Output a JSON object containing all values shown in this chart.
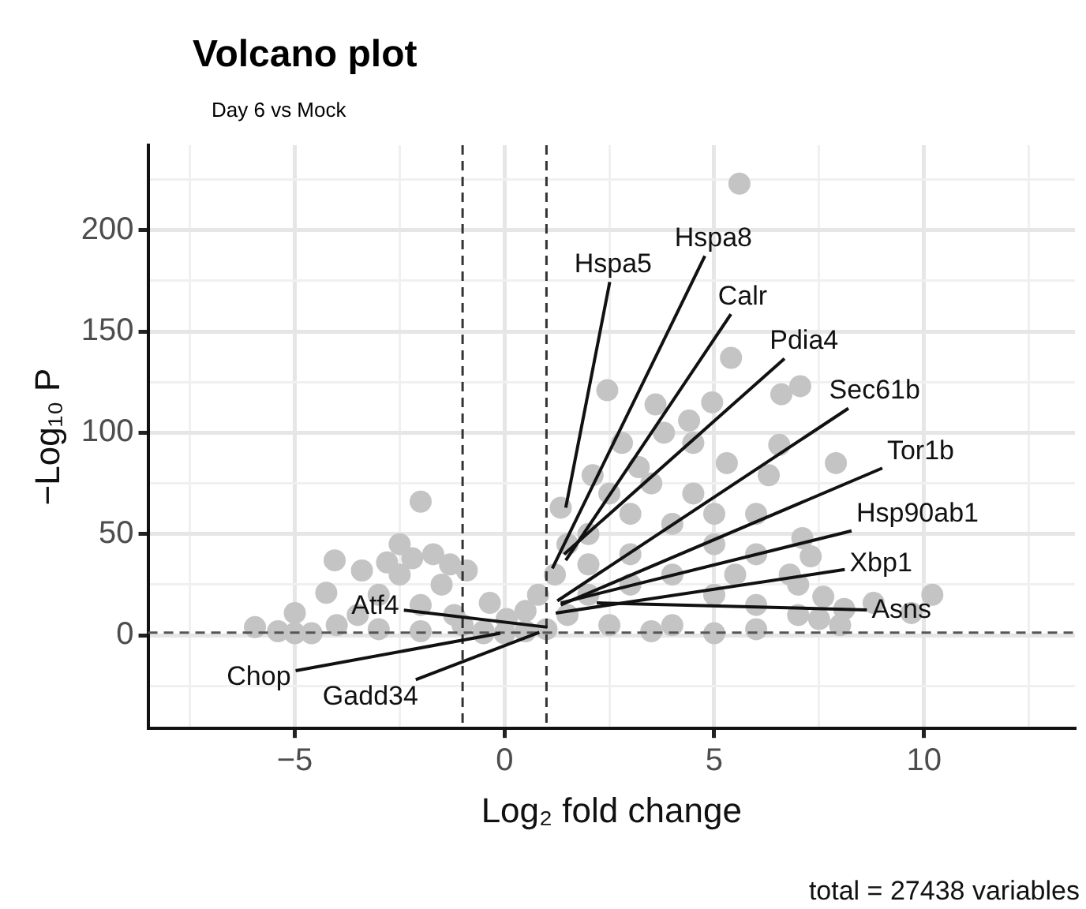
{
  "chart_data": {
    "type": "scatter",
    "title": "Volcano plot",
    "subtitle": "Day 6 vs Mock",
    "xlabel": "Log₂ fold change",
    "ylabel": "−Log₁₀ P",
    "xlim": [
      -8.5,
      13.6
    ],
    "ylim": [
      -46,
      242
    ],
    "xticks": [
      {
        "value": -7.5,
        "label": null
      },
      -5,
      {
        "value": -2.5,
        "label": null
      },
      0,
      {
        "value": 2.5,
        "label": null
      },
      5,
      {
        "value": 7.5,
        "label": null
      },
      10,
      {
        "value": 12.5,
        "label": null
      }
    ],
    "yticks": [
      {
        "value": -25,
        "label": null
      },
      0,
      {
        "value": 25,
        "label": null
      },
      50,
      {
        "value": 75,
        "label": null
      },
      100,
      {
        "value": 125,
        "label": null
      },
      150,
      {
        "value": 175,
        "label": null
      },
      200,
      {
        "value": 225,
        "label": null
      }
    ],
    "grid": true,
    "marker": "circle",
    "ref_lines": [
      {
        "axis": "x",
        "value": -1,
        "color": "#333333",
        "line_style": "dashed"
      },
      {
        "axis": "x",
        "value": 1,
        "color": "#333333",
        "line_style": "dashed"
      },
      {
        "axis": "y",
        "value": 1.3,
        "color": "#555555",
        "line_style": "dashed"
      }
    ],
    "series": [
      {
        "color": "#c4c4c4",
        "x": [
          -2.0,
          -2.5,
          -4.05,
          -4.25,
          -5.95,
          -5.0,
          -3.4,
          -1.7,
          -0.9,
          -0.35,
          0.05,
          -5.4,
          -4.6,
          -3,
          -2,
          -1.5,
          -2.5,
          -3.5,
          -1,
          -4,
          -0.5,
          -2,
          -3,
          -5,
          -1.2,
          -2.8,
          -2.2,
          -1.3,
          0,
          0.5,
          -0.5,
          5.6,
          2.45,
          5.4,
          6.6,
          7.05,
          3.6,
          4.95,
          4.4,
          6.55,
          7.9,
          2.1,
          5.3,
          3.2,
          6.3,
          7.1,
          7.3,
          10.2,
          8.8,
          8.1,
          9.7,
          7.6,
          1.34,
          2,
          3,
          4,
          5,
          6,
          4,
          3,
          2,
          5,
          6,
          7,
          1.5,
          2.5,
          4,
          6,
          8,
          1.2,
          1.5,
          2.5,
          3.5,
          4.5,
          5,
          3,
          2,
          6,
          5.5,
          7,
          4.5,
          3.8,
          2.8,
          1,
          0.5,
          0.8,
          6.8,
          7.5,
          3.5,
          5
        ],
        "values": [
          66,
          45,
          37,
          21,
          4,
          11,
          32,
          40,
          32,
          16,
          8,
          2,
          1,
          20,
          15,
          25,
          30,
          10,
          5,
          5,
          2,
          2,
          3,
          1,
          10,
          36,
          38,
          35,
          1,
          2,
          1,
          223,
          121,
          137,
          119,
          123,
          114,
          115,
          106,
          94,
          85,
          79,
          85,
          83,
          79,
          48,
          39,
          20,
          16,
          13,
          11,
          19,
          63,
          50,
          60,
          55,
          45,
          40,
          30,
          25,
          20,
          20,
          15,
          10,
          10,
          5,
          5,
          3,
          5,
          30,
          45,
          70,
          75,
          70,
          60,
          40,
          35,
          60,
          30,
          25,
          95,
          100,
          95,
          3,
          12,
          20,
          30,
          8,
          2,
          1
        ]
      }
    ],
    "annotations": [
      {
        "text": "Hspa5",
        "x": 1.46,
        "y": 63
      },
      {
        "text": "Hspa8",
        "x": 1.14,
        "y": 33
      },
      {
        "text": "Calr",
        "x": 1.46,
        "y": 37
      },
      {
        "text": "Pdia4",
        "x": 1.42,
        "y": 40
      },
      {
        "text": "Sec61b",
        "x": 1.26,
        "y": 17
      },
      {
        "text": "Tor1b",
        "x": 1.34,
        "y": 15
      },
      {
        "text": "Hsp90ab1",
        "x": 1.34,
        "y": 16
      },
      {
        "text": "Xbp1",
        "x": 1.22,
        "y": 11
      },
      {
        "text": "Asns",
        "x": 2.2,
        "y": 16
      },
      {
        "text": "Atf4",
        "x": 1.02,
        "y": 4
      },
      {
        "text": "Chop",
        "x": -0.1,
        "y": 1
      },
      {
        "text": "Gadd34",
        "x": 0.83,
        "y": 1.5
      },
      "total = 27438 variables"
    ]
  }
}
